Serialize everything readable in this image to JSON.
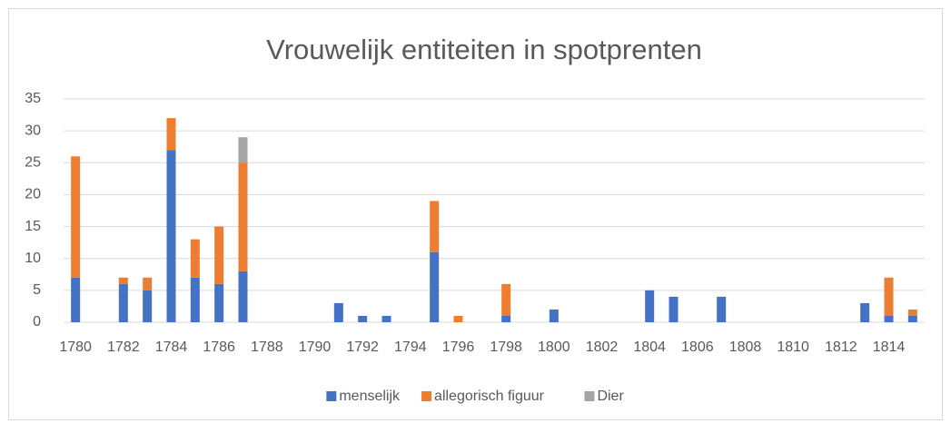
{
  "chart_data": {
    "type": "bar",
    "stacked": true,
    "title": "Vrouwelijk entiteiten in spotprenten",
    "categories": [
      "1780",
      null,
      "1782",
      null,
      "1784",
      null,
      "1786",
      null,
      "1788",
      null,
      "1790",
      null,
      "1792",
      null,
      "1794",
      null,
      "1796",
      null,
      "1798",
      null,
      "1800",
      null,
      "1802",
      null,
      "1804",
      null,
      "1806",
      null,
      "1808",
      null,
      "1810",
      null,
      "1812",
      null,
      "1814",
      null
    ],
    "series": [
      {
        "name": "menselijk",
        "color": "#4472c4",
        "values": [
          7,
          0,
          6,
          5,
          27,
          7,
          6,
          8,
          0,
          0,
          0,
          3,
          1,
          1,
          0,
          11,
          0,
          0,
          1,
          0,
          2,
          0,
          0,
          0,
          5,
          4,
          0,
          4,
          0,
          0,
          0,
          0,
          0,
          3,
          1,
          1
        ]
      },
      {
        "name": "allegorisch figuur",
        "color": "#ed7d31",
        "values": [
          19,
          0,
          1,
          2,
          5,
          6,
          9,
          17,
          0,
          0,
          0,
          0,
          0,
          0,
          0,
          8,
          1,
          0,
          5,
          0,
          0,
          0,
          0,
          0,
          0,
          0,
          0,
          0,
          0,
          0,
          0,
          0,
          0,
          0,
          6,
          1
        ]
      },
      {
        "name": "Dier",
        "color": "#a5a5a5",
        "values": [
          0,
          0,
          0,
          0,
          0,
          0,
          0,
          4,
          0,
          0,
          0,
          0,
          0,
          0,
          0,
          0,
          0,
          0,
          0,
          0,
          0,
          0,
          0,
          0,
          0,
          0,
          0,
          0,
          0,
          0,
          0,
          0,
          0,
          0,
          0,
          0
        ]
      }
    ],
    "ylim": [
      0,
      35
    ],
    "yticks": [
      0,
      5,
      10,
      15,
      20,
      25,
      30,
      35
    ],
    "grid": true,
    "legend": "bottom"
  }
}
